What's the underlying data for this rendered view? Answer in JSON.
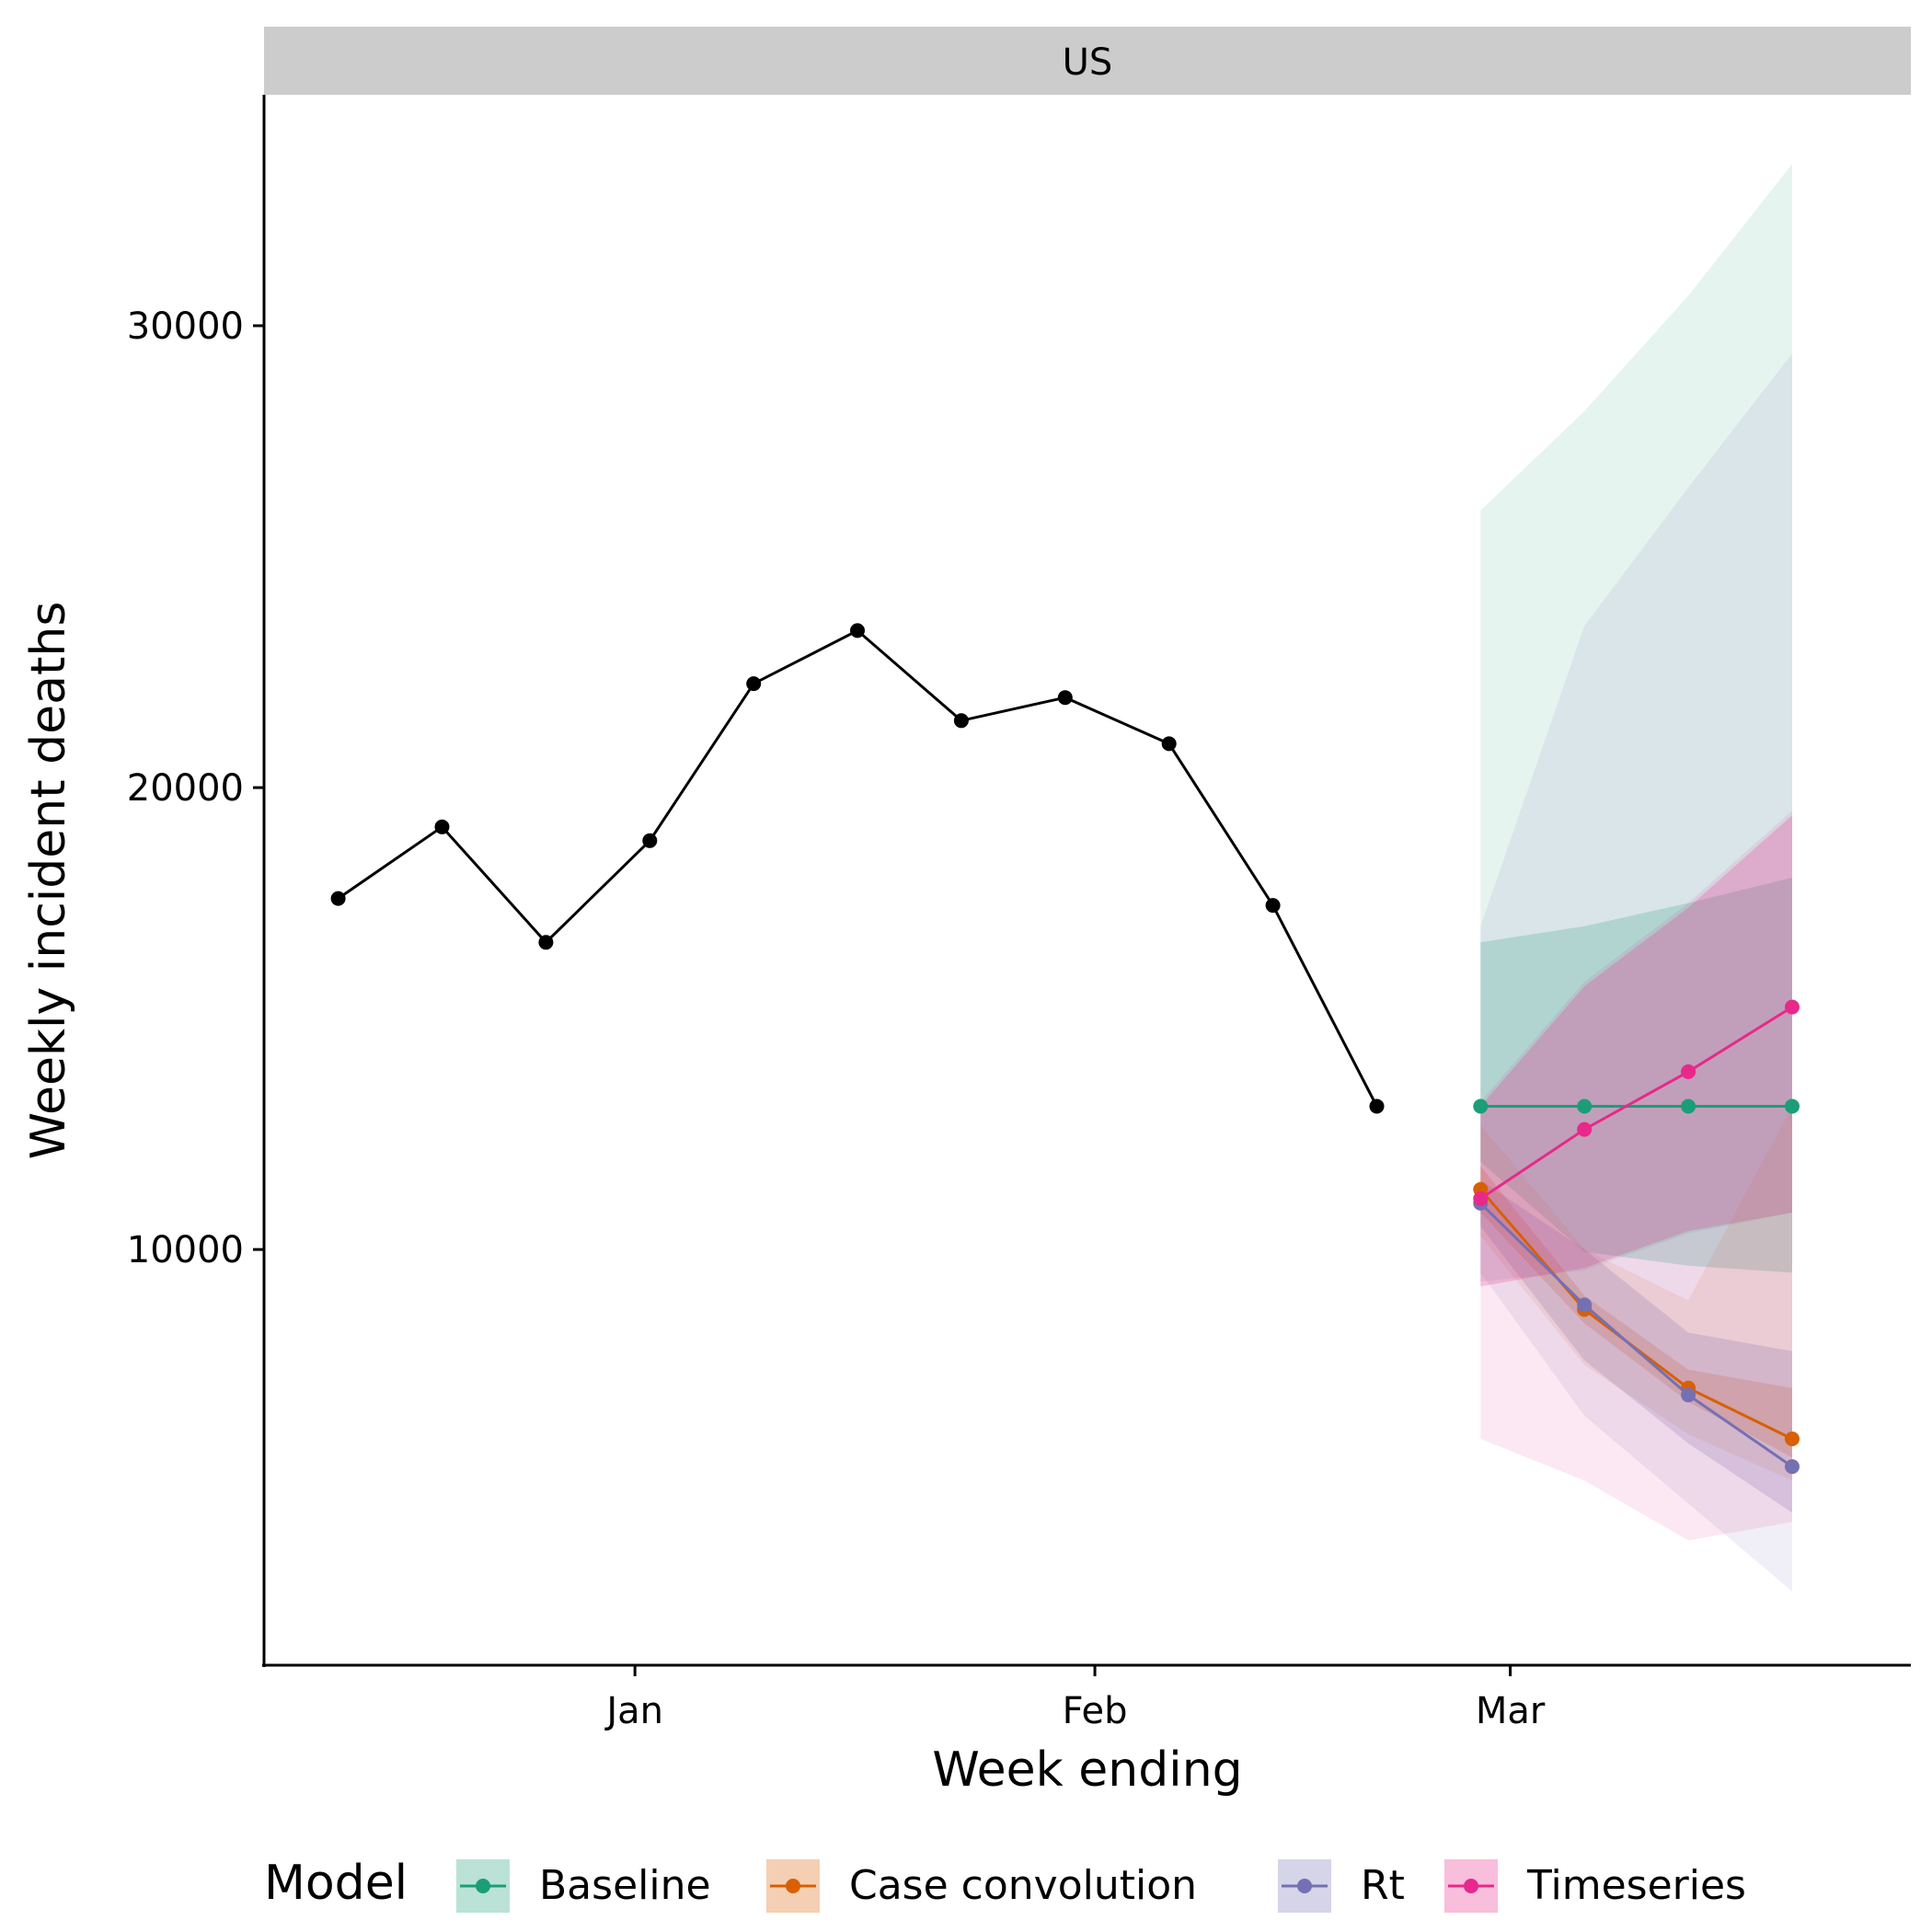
{
  "chart_data": {
    "type": "line",
    "panel_title": "US",
    "xlabel": "Week ending",
    "ylabel": "Weekly incident deaths",
    "x_ticks": [
      {
        "date": "2021-01-01",
        "label": "Jan"
      },
      {
        "date": "2021-02-01",
        "label": "Feb"
      },
      {
        "date": "2021-03-01",
        "label": "Mar"
      }
    ],
    "y_ticks": [
      10000,
      20000,
      30000
    ],
    "xlim": [
      "2020-12-07",
      "2021-03-28"
    ],
    "ylim": [
      1000,
      35000
    ],
    "grid": false,
    "legend": {
      "title": "Model",
      "position": "bottom",
      "entries": [
        "Baseline",
        "Case convolution",
        "Rt",
        "Timeseries"
      ]
    },
    "observed": {
      "color": "#000000",
      "x": [
        "2020-12-12",
        "2020-12-19",
        "2020-12-26",
        "2021-01-02",
        "2021-01-09",
        "2021-01-16",
        "2021-01-23",
        "2021-01-30",
        "2021-02-06",
        "2021-02-13",
        "2021-02-20"
      ],
      "y": [
        17600,
        19150,
        16650,
        18850,
        22250,
        23400,
        21450,
        21950,
        20950,
        17450,
        13100
      ]
    },
    "forecast_dates": [
      "2021-02-27",
      "2021-03-06",
      "2021-03-13",
      "2021-03-20"
    ],
    "series": [
      {
        "name": "Baseline",
        "color": "#1B9E77",
        "values": [
          13100,
          13100,
          13100,
          13100
        ],
        "inner": {
          "lower": [
            11900,
            9950,
            9650,
            9500
          ],
          "upper": [
            16650,
            17000,
            17500,
            18050
          ]
        },
        "outer": {
          "lower": [
            9300,
            9550,
            10350,
            10800
          ],
          "upper": [
            26000,
            28150,
            30650,
            33500
          ]
        }
      },
      {
        "name": "Case convolution",
        "color": "#D95F02",
        "values": [
          11300,
          8700,
          7000,
          5900
        ],
        "inner": {
          "lower": [
            10800,
            8400,
            6700,
            5500
          ],
          "upper": [
            11800,
            9000,
            7400,
            7000
          ]
        },
        "outer": {
          "lower": [
            10300,
            7500,
            6000,
            5000
          ],
          "upper": [
            12700,
            10000,
            8900,
            13100
          ]
        }
      },
      {
        "name": "Rt",
        "color": "#7570B3",
        "values": [
          11000,
          8800,
          6850,
          5300
        ],
        "inner": {
          "lower": [
            10500,
            7600,
            5800,
            4300
          ],
          "upper": [
            11500,
            10000,
            8200,
            7800
          ]
        },
        "outer": {
          "lower": [
            9500,
            6400,
            4500,
            2600
          ],
          "upper": [
            17000,
            23500,
            26500,
            29400
          ]
        }
      },
      {
        "name": "Timeseries",
        "color": "#E7298A",
        "values": [
          11100,
          12600,
          13850,
          15250
        ],
        "inner": {
          "lower": [
            9200,
            9600,
            10400,
            10800
          ],
          "upper": [
            13100,
            15700,
            17400,
            19400
          ]
        },
        "outer": {
          "lower": [
            5900,
            5000,
            3700,
            4100
          ],
          "upper": [
            13200,
            15800,
            17500,
            19500
          ]
        }
      }
    ]
  }
}
